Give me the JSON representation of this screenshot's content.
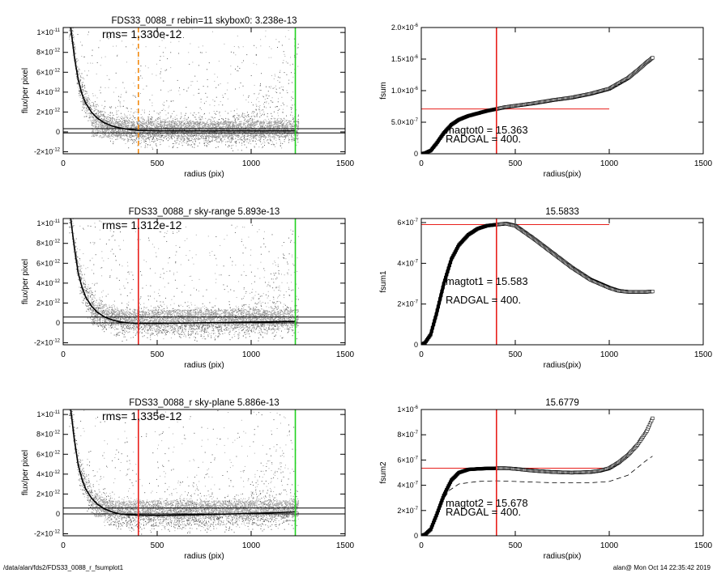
{
  "footer": {
    "path": "/data/alan/fds2/FDS33_0088_r_fsumplot1",
    "stamp": "alan@  Mon Oct 14 22:35:42 2019"
  },
  "colors": {
    "red": "#e8201c",
    "green": "#21d11f",
    "orange": "#f28a12",
    "scatter_dark": "#5a5a5a",
    "scatter_light": "#a8a8a8"
  },
  "chart_data": [
    {
      "type": "scatter",
      "title": "FDS33_0088_r rebin=11    skybox0:  3.238e-13",
      "annotations": [
        "rms= 1.330e-12"
      ],
      "xlabel": "radius (pix)",
      "ylabel": "flux/per pixel",
      "xlim": [
        0,
        1500
      ],
      "ylim": [
        -2.2e-12,
        1.05e-11
      ],
      "x_ticks": [
        0,
        500,
        1000,
        1500
      ],
      "y_ticks": [
        -2e-12,
        0,
        2e-12,
        4e-12,
        6e-12,
        8e-12,
        1e-11
      ],
      "y_tick_labels": [
        [
          "-2×10",
          "-12"
        ],
        [
          "0",
          ""
        ],
        [
          "2×10",
          "-12"
        ],
        [
          "4×10",
          "-12"
        ],
        [
          "6×10",
          "-12"
        ],
        [
          "8×10",
          "-12"
        ],
        [
          "1×10",
          "-11"
        ]
      ],
      "hlines": [
        {
          "y": 3.238e-13,
          "color": "black"
        },
        {
          "y": -1e-13,
          "color": "black"
        }
      ],
      "vlines": [
        {
          "x": 400,
          "color": "orange",
          "style": "dashed"
        },
        {
          "x": 1235,
          "color": "green"
        }
      ],
      "profile": {
        "x": [
          40,
          60,
          80,
          100,
          120,
          150,
          180,
          220,
          260,
          300,
          350,
          400,
          500,
          600,
          800,
          1000,
          1235
        ],
        "y": [
          1.05e-11,
          7.5e-12,
          5.2e-12,
          3.8e-12,
          2.9e-12,
          2e-12,
          1.4e-12,
          9e-13,
          6e-13,
          4e-13,
          2.5e-13,
          1.5e-13,
          1e-13,
          1e-13,
          1e-13,
          1e-13,
          1e-13
        ]
      }
    },
    {
      "type": "line",
      "title": "",
      "annotations": [
        "magtot0 = 15.363",
        "RADGAL =    400."
      ],
      "xlabel": "radius(pix)",
      "ylabel": "fsum",
      "xlim": [
        0,
        1500
      ],
      "ylim": [
        0,
        2e-06
      ],
      "x_ticks": [
        0,
        500,
        1000,
        1500
      ],
      "y_ticks": [
        0,
        5e-07,
        1e-06,
        1.5e-06,
        2e-06
      ],
      "y_tick_labels": [
        [
          "0",
          ""
        ],
        [
          "5.0×10",
          "-7"
        ],
        [
          "1.0×10",
          "-6"
        ],
        [
          "1.5×10",
          "-6"
        ],
        [
          "2.0×10",
          "-6"
        ]
      ],
      "hlines": [
        {
          "y": 7.1e-07,
          "color": "red",
          "x0": 0,
          "x1": 1000
        }
      ],
      "vlines": [
        {
          "x": 400,
          "color": "red"
        }
      ],
      "series": [
        {
          "x": [
            0,
            20,
            50,
            80,
            120,
            160,
            200,
            250,
            300,
            350,
            400,
            450,
            500,
            600,
            700,
            800,
            900,
            1000,
            1100,
            1150,
            1200,
            1230
          ],
          "y": [
            0,
            1e-08,
            5e-08,
            1.6e-07,
            3.3e-07,
            4.6e-07,
            5.4e-07,
            6e-07,
            6.4e-07,
            6.8e-07,
            7.1e-07,
            7.4e-07,
            7.6e-07,
            8e-07,
            8.5e-07,
            8.9e-07,
            9.5e-07,
            1.03e-06,
            1.2e-06,
            1.32e-06,
            1.45e-06,
            1.52e-06
          ],
          "marker": "square"
        }
      ]
    },
    {
      "type": "scatter",
      "title": "FDS33_0088_r sky-range  5.893e-13",
      "annotations": [
        "rms= 1.312e-12"
      ],
      "xlabel": "radius (pix)",
      "ylabel": "flux/per pixel",
      "xlim": [
        0,
        1500
      ],
      "ylim": [
        -2.2e-12,
        1.05e-11
      ],
      "x_ticks": [
        0,
        500,
        1000,
        1500
      ],
      "y_ticks": [
        -2e-12,
        0,
        2e-12,
        4e-12,
        6e-12,
        8e-12,
        1e-11
      ],
      "y_tick_labels": [
        [
          "-2×10",
          "-12"
        ],
        [
          "0",
          ""
        ],
        [
          "2×10",
          "-12"
        ],
        [
          "4×10",
          "-12"
        ],
        [
          "6×10",
          "-12"
        ],
        [
          "8×10",
          "-12"
        ],
        [
          "1×10",
          "-11"
        ]
      ],
      "hlines": [
        {
          "y": 5.893e-13,
          "color": "black"
        },
        {
          "y": 0,
          "color": "black"
        }
      ],
      "vlines": [
        {
          "x": 400,
          "color": "red"
        },
        {
          "x": 1235,
          "color": "green"
        }
      ],
      "profile": {
        "x": [
          40,
          60,
          80,
          100,
          120,
          150,
          180,
          220,
          260,
          300,
          350,
          400,
          500,
          700,
          900,
          1100,
          1235
        ],
        "y": [
          1.05e-11,
          7.5e-12,
          5e-12,
          3.6e-12,
          2.6e-12,
          1.7e-12,
          1.1e-12,
          6e-13,
          3e-13,
          1e-13,
          0,
          -5e-14,
          -5e-14,
          0,
          5e-14,
          1e-13,
          1.5e-13
        ]
      }
    },
    {
      "type": "line",
      "title": "15.5833",
      "annotations": [
        "magtot1 = 15.583",
        "RADGAL =    400."
      ],
      "xlabel": "radius(pix)",
      "ylabel": "fsum1",
      "xlim": [
        0,
        1500
      ],
      "ylim": [
        0,
        6.2e-07
      ],
      "x_ticks": [
        0,
        500,
        1000,
        1500
      ],
      "y_ticks": [
        0,
        2e-07,
        4e-07,
        6e-07
      ],
      "y_tick_labels": [
        [
          "0",
          ""
        ],
        [
          "2×10",
          "-7"
        ],
        [
          "4×10",
          "-7"
        ],
        [
          "6×10",
          "-7"
        ]
      ],
      "hlines": [
        {
          "y": 5.9e-07,
          "color": "red",
          "x0": 0,
          "x1": 1000
        }
      ],
      "vlines": [
        {
          "x": 400,
          "color": "red"
        }
      ],
      "series": [
        {
          "x": [
            0,
            20,
            50,
            80,
            120,
            160,
            200,
            250,
            300,
            350,
            400,
            450,
            500,
            600,
            700,
            800,
            900,
            1000,
            1050,
            1100,
            1150,
            1200,
            1230
          ],
          "y": [
            0,
            1e-08,
            5e-08,
            1.5e-07,
            3e-07,
            4.2e-07,
            4.9e-07,
            5.4e-07,
            5.7e-07,
            5.85e-07,
            5.9e-07,
            5.95e-07,
            5.85e-07,
            5.2e-07,
            4.5e-07,
            3.8e-07,
            3.2e-07,
            2.8e-07,
            2.65e-07,
            2.6e-07,
            2.6e-07,
            2.6e-07,
            2.62e-07
          ],
          "marker": "square"
        }
      ]
    },
    {
      "type": "scatter",
      "title": "FDS33_0088_r sky-plane  5.886e-13",
      "annotations": [
        "rms= 1.335e-12"
      ],
      "xlabel": "radius (pix)",
      "ylabel": "flux/per pixel",
      "xlim": [
        0,
        1500
      ],
      "ylim": [
        -2.2e-12,
        1.05e-11
      ],
      "x_ticks": [
        0,
        500,
        1000,
        1500
      ],
      "y_ticks": [
        -2e-12,
        0,
        2e-12,
        4e-12,
        6e-12,
        8e-12,
        1e-11
      ],
      "y_tick_labels": [
        [
          "-2×10",
          "-12"
        ],
        [
          "0",
          ""
        ],
        [
          "2×10",
          "-12"
        ],
        [
          "4×10",
          "-12"
        ],
        [
          "6×10",
          "-12"
        ],
        [
          "8×10",
          "-12"
        ],
        [
          "1×10",
          "-11"
        ]
      ],
      "hlines": [
        {
          "y": 5.886e-13,
          "color": "black"
        },
        {
          "y": 0,
          "color": "black"
        }
      ],
      "vlines": [
        {
          "x": 400,
          "color": "red"
        },
        {
          "x": 1235,
          "color": "green"
        }
      ],
      "profile": {
        "x": [
          40,
          60,
          80,
          100,
          120,
          150,
          180,
          220,
          260,
          300,
          350,
          400,
          500,
          700,
          900,
          1100,
          1235
        ],
        "y": [
          1.05e-11,
          7.4e-12,
          4.9e-12,
          3.5e-12,
          2.5e-12,
          1.6e-12,
          1e-12,
          5e-13,
          2e-13,
          0,
          -1e-13,
          -1.2e-13,
          -1.5e-13,
          -1e-13,
          0,
          1e-13,
          2e-13
        ]
      }
    },
    {
      "type": "line",
      "title": "15.6779",
      "annotations": [
        "magtot2 = 15.678",
        "RADGAL =    400."
      ],
      "xlabel": "radius(pix)",
      "ylabel": "fsum2",
      "xlim": [
        0,
        1500
      ],
      "ylim": [
        0,
        1e-06
      ],
      "x_ticks": [
        0,
        500,
        1000,
        1500
      ],
      "y_ticks": [
        0,
        2e-07,
        4e-07,
        6e-07,
        8e-07,
        1e-06
      ],
      "y_tick_labels": [
        [
          "0",
          ""
        ],
        [
          "2×10",
          "-7"
        ],
        [
          "4×10",
          "-7"
        ],
        [
          "6×10",
          "-7"
        ],
        [
          "8×10",
          "-7"
        ],
        [
          "1×10",
          "-6"
        ]
      ],
      "hlines": [
        {
          "y": 5.35e-07,
          "color": "red",
          "x0": 0,
          "x1": 1000
        }
      ],
      "vlines": [
        {
          "x": 400,
          "color": "red"
        }
      ],
      "series": [
        {
          "x": [
            0,
            20,
            50,
            80,
            120,
            160,
            200,
            250,
            300,
            350,
            400,
            450,
            500,
            600,
            700,
            800,
            900,
            950,
            1000,
            1050,
            1100,
            1150,
            1200,
            1230
          ],
          "y": [
            0,
            1e-08,
            5e-08,
            1.6e-07,
            3.2e-07,
            4.4e-07,
            5e-07,
            5.25e-07,
            5.3e-07,
            5.33e-07,
            5.35e-07,
            5.35e-07,
            5.3e-07,
            5.15e-07,
            5.05e-07,
            5e-07,
            5.05e-07,
            5.15e-07,
            5.35e-07,
            5.8e-07,
            6.4e-07,
            7.2e-07,
            8.3e-07,
            9.3e-07
          ],
          "marker": "square"
        },
        {
          "x": [
            100,
            150,
            200,
            300,
            400,
            500,
            600,
            700,
            800,
            900,
            1000,
            1100,
            1150,
            1200,
            1230
          ],
          "y": [
            2.5e-07,
            3.6e-07,
            4.1e-07,
            4.3e-07,
            4.35e-07,
            4.3e-07,
            4.25e-07,
            4.2e-07,
            4.2e-07,
            4.2e-07,
            4.3e-07,
            4.8e-07,
            5.4e-07,
            6e-07,
            6.3e-07
          ],
          "style": "dashed"
        }
      ]
    }
  ]
}
